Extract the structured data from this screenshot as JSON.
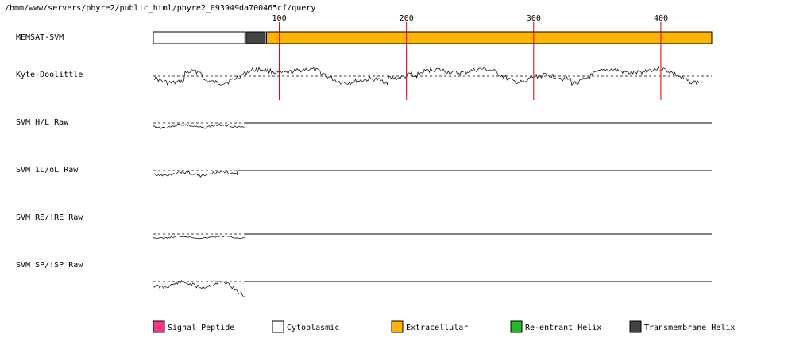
{
  "header": {
    "path": "/bmm/www/servers/phyre2/public_html/phyre2_093949da700465cf/query"
  },
  "ruler": {
    "ticks": [
      100,
      200,
      300,
      400
    ]
  },
  "tracks": [
    {
      "id": "memsat",
      "label": "MEMSAT-SVM"
    },
    {
      "id": "kyte",
      "label": "Kyte-Doolittle"
    },
    {
      "id": "hl",
      "label": "SVM H/L Raw"
    },
    {
      "id": "ilol",
      "label": "SVM iL/oL Raw"
    },
    {
      "id": "reire",
      "label": "SVM RE/!RE Raw"
    },
    {
      "id": "spisp",
      "label": "SVM SP/!SP Raw"
    }
  ],
  "memsat_segments": [
    {
      "type": "Cytoplasmic",
      "start": 1,
      "end": 73,
      "color": "#ffffff"
    },
    {
      "type": "Transmembrane Helix",
      "start": 74,
      "end": 89,
      "color": "#444444"
    },
    {
      "type": "Extracellular",
      "start": 90,
      "end": 440,
      "color": "#ffb400"
    }
  ],
  "legend": [
    {
      "label": "Signal Peptide",
      "color": "#ff3388"
    },
    {
      "label": "Cytoplasmic",
      "color": "#ffffff"
    },
    {
      "label": "Extracellular",
      "color": "#ffb400"
    },
    {
      "label": "Re-entrant Helix",
      "color": "#22bb22"
    },
    {
      "label": "Transmembrane Helix",
      "color": "#444444"
    }
  ],
  "colors": {
    "ruler_line": "#dd0000",
    "trace": "#000000",
    "baseline": "#000000"
  }
}
